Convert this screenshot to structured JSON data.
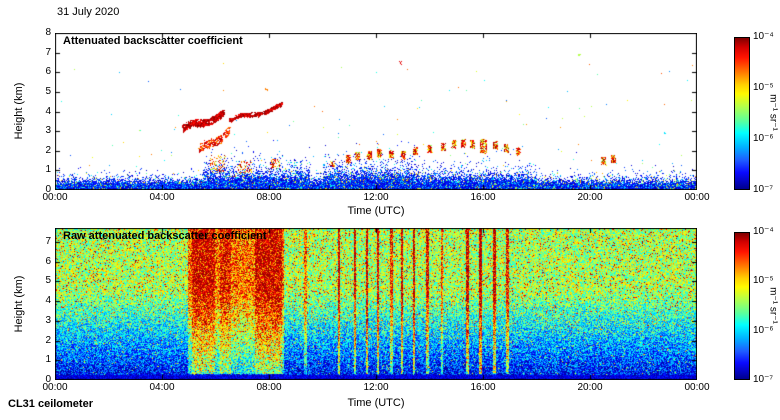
{
  "figure": {
    "date_label": "31 July 2020",
    "instrument_label": "CL31 ceilometer"
  },
  "chart_data": [
    {
      "type": "heatmap",
      "title": "Attenuated backscatter coefficient",
      "xlabel": "Time (UTC)",
      "ylabel": "Height (km)",
      "x_ticks": [
        "00:00",
        "04:00",
        "08:00",
        "12:00",
        "16:00",
        "20:00",
        "00:00"
      ],
      "x_tick_hours": [
        0,
        4,
        8,
        12,
        16,
        20,
        24
      ],
      "xlim_hours": [
        0,
        24
      ],
      "y_ticks": [
        0,
        1,
        2,
        3,
        4,
        5,
        6,
        7,
        8
      ],
      "ylim_km": [
        0,
        8
      ],
      "colorbar": {
        "colormap": "jet",
        "ticks": [
          "10⁻⁴",
          "10⁻⁵",
          "10⁻⁶",
          "10⁻⁷"
        ],
        "label": "m⁻¹ sr⁻¹",
        "vmin": "1e-7",
        "vmax": "1e-4"
      },
      "features": {
        "boundary_layer": {
          "base_scale_km": 0.14,
          "enhanced": [
            {
              "t0": 5.5,
              "t1": 9.5,
              "scale_km": 0.28
            },
            {
              "t0": 10.0,
              "t1": 13.5,
              "scale_km": 0.3
            },
            {
              "t0": 13.5,
              "t1": 18.0,
              "scale_km": 0.22
            }
          ]
        },
        "speckle_dots": 150,
        "cloud_streaks": [
          {
            "t0": 4.75,
            "t1": 6.3,
            "h0": 3.15,
            "h1": 3.85,
            "wobble": 0.35,
            "dots": 520,
            "tmin": 0.86,
            "tmax": 1.0
          },
          {
            "t0": 6.5,
            "t1": 8.45,
            "h0": 3.55,
            "h1": 4.3,
            "wobble": 0.18,
            "dots": 420,
            "tmin": 0.86,
            "tmax": 1.0
          },
          {
            "t0": 5.35,
            "t1": 6.5,
            "h0": 2.05,
            "h1": 2.95,
            "wobble": 0.45,
            "dots": 170,
            "tmin": 0.72,
            "tmax": 0.96
          }
        ],
        "cloud_patches": [
          {
            "t": 6.05,
            "h": 1.35,
            "w": 0.6,
            "dh": 0.9,
            "dots": 90
          },
          {
            "t": 7.1,
            "h": 1.2,
            "w": 0.5,
            "dh": 0.7,
            "dots": 60
          },
          {
            "t": 8.2,
            "h": 1.35,
            "w": 0.35,
            "dh": 0.5,
            "dots": 55
          },
          {
            "t": 10.35,
            "h": 1.35,
            "w": 0.2,
            "dh": 0.3,
            "dots": 30
          },
          {
            "t": 10.95,
            "h": 1.6
          },
          {
            "t": 11.3,
            "h": 1.75
          },
          {
            "t": 11.75,
            "h": 1.8
          },
          {
            "t": 12.1,
            "h": 1.9
          },
          {
            "t": 12.55,
            "h": 1.85
          },
          {
            "t": 13.0,
            "h": 1.8
          },
          {
            "t": 13.45,
            "h": 2.0
          },
          {
            "t": 14.0,
            "h": 2.1
          },
          {
            "t": 14.5,
            "h": 2.2
          },
          {
            "t": 14.9,
            "h": 2.35
          },
          {
            "t": 15.25,
            "h": 2.4
          },
          {
            "t": 15.6,
            "h": 2.35
          },
          {
            "t": 16.0,
            "h": 2.25,
            "w": 0.25,
            "dh": 0.7,
            "dots": 140
          },
          {
            "t": 16.45,
            "h": 2.3
          },
          {
            "t": 16.85,
            "h": 2.15
          },
          {
            "t": 17.3,
            "h": 2.0,
            "dots": 50
          },
          {
            "t": 20.5,
            "h": 1.5
          },
          {
            "t": 20.85,
            "h": 1.6
          }
        ],
        "high_dots": [
          {
            "t": 12.9,
            "h": 6.5,
            "ct": 0.9
          },
          {
            "t": 19.6,
            "h": 6.9,
            "ct": 0.55
          },
          {
            "t": 7.9,
            "h": 5.15,
            "ct": 0.75
          },
          {
            "t": 22.8,
            "h": 2.9,
            "ct": 0.35
          }
        ]
      }
    },
    {
      "type": "heatmap",
      "title": "Raw attenuated backscatter coefficient",
      "xlabel": "Time (UTC)",
      "ylabel": "Height (km)",
      "x_ticks": [
        "00:00",
        "04:00",
        "08:00",
        "12:00",
        "16:00",
        "20:00",
        "00:00"
      ],
      "x_tick_hours": [
        0,
        4,
        8,
        12,
        16,
        20,
        24
      ],
      "xlim_hours": [
        0,
        24
      ],
      "y_ticks": [
        0,
        1,
        2,
        3,
        4,
        5,
        6,
        7
      ],
      "ylim_km": [
        0,
        7.7
      ],
      "colorbar": {
        "colormap": "jet",
        "ticks": [
          "10⁻⁴",
          "10⁻⁵",
          "10⁻⁶",
          "10⁻⁷"
        ],
        "label": "m⁻¹ sr⁻¹",
        "vmin": "1e-7",
        "vmax": "1e-4"
      },
      "features": {
        "streaks": {
          "broad": [
            {
              "t0": 4.95,
              "t1": 8.55,
              "boost": 0.2
            },
            {
              "t0": 5.1,
              "t1": 5.95,
              "boost": 0.14
            },
            {
              "t0": 6.15,
              "t1": 6.55,
              "boost": 0.1
            },
            {
              "t0": 7.45,
              "t1": 8.45,
              "boost": 0.14
            }
          ],
          "narrow": [
            {
              "t": 9.35,
              "boost": 0.2
            },
            {
              "t": 10.6,
              "boost": 0.35
            },
            {
              "t": 11.2,
              "boost": 0.33
            },
            {
              "t": 11.65,
              "boost": 0.36
            },
            {
              "t": 12.05,
              "boost": 0.33
            },
            {
              "t": 12.55,
              "boost": 0.26
            },
            {
              "t": 12.95,
              "boost": 0.36
            },
            {
              "t": 13.4,
              "boost": 0.36
            },
            {
              "t": 13.9,
              "boost": 0.3
            },
            {
              "t": 14.45,
              "boost": 0.22
            },
            {
              "t": 15.4,
              "boost": 0.36
            },
            {
              "t": 15.9,
              "boost": 0.4
            },
            {
              "t": 16.4,
              "boost": 0.36
            },
            {
              "t": 16.9,
              "boost": 0.3
            }
          ],
          "narrow_width_hours": 0.1
        }
      }
    }
  ]
}
